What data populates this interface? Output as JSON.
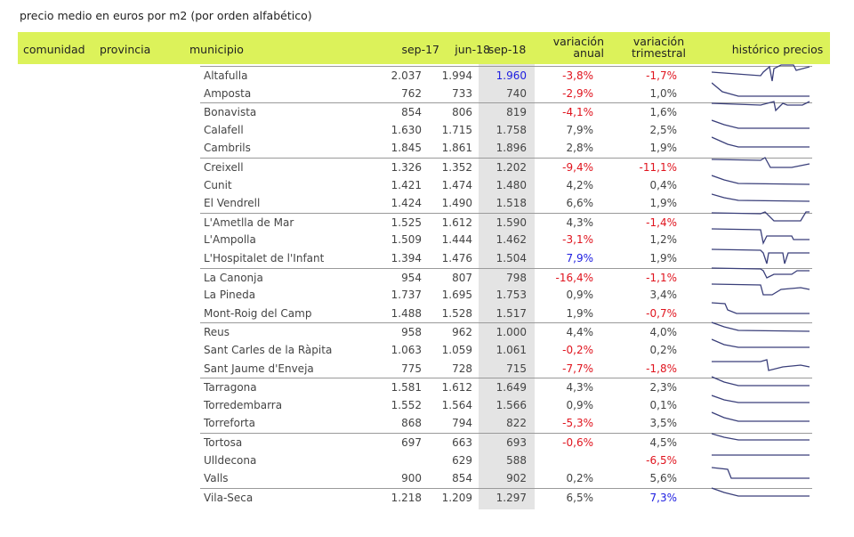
{
  "caption": "precio medio en euros por m2 (por orden alfabético)",
  "headers": {
    "comunidad": "comunidad",
    "provincia": "provincia",
    "municipio": "municipio",
    "sep17": "sep-17",
    "jun18": "jun-18",
    "sep18": "sep-18",
    "var_anual_1": "variación",
    "var_anual_2": "anual",
    "var_trim_1": "variación",
    "var_trim_2": "trimestral",
    "historico": "histórico precios"
  },
  "colors": {
    "header_bg": "#dcf25a",
    "negative": "#e0141e",
    "highlight": "#1d1de0",
    "spark": "#3a3f7a"
  },
  "rows": [
    {
      "name": "Altafulla",
      "sep17": "2.037",
      "jun18": "1.994",
      "sep18": "1.960",
      "va": "-3,8%",
      "vt": "-1,7%",
      "s18c": "blue",
      "vac": "neg",
      "vtc": "neg",
      "group": true
    },
    {
      "name": "Amposta",
      "sep17": "762",
      "jun18": "733",
      "sep18": "740",
      "va": "-2,9%",
      "vt": "1,0%",
      "vac": "neg"
    },
    {
      "name": "Bonavista",
      "sep17": "854",
      "jun18": "806",
      "sep18": "819",
      "va": "-4,1%",
      "vt": "1,6%",
      "vac": "neg",
      "group": true
    },
    {
      "name": "Calafell",
      "sep17": "1.630",
      "jun18": "1.715",
      "sep18": "1.758",
      "va": "7,9%",
      "vt": "2,5%"
    },
    {
      "name": "Cambrils",
      "sep17": "1.845",
      "jun18": "1.861",
      "sep18": "1.896",
      "va": "2,8%",
      "vt": "1,9%"
    },
    {
      "name": "Creixell",
      "sep17": "1.326",
      "jun18": "1.352",
      "sep18": "1.202",
      "va": "-9,4%",
      "vt": "-11,1%",
      "vac": "neg",
      "vtc": "neg",
      "group": true
    },
    {
      "name": "Cunit",
      "sep17": "1.421",
      "jun18": "1.474",
      "sep18": "1.480",
      "va": "4,2%",
      "vt": "0,4%"
    },
    {
      "name": "El Vendrell",
      "sep17": "1.424",
      "jun18": "1.490",
      "sep18": "1.518",
      "va": "6,6%",
      "vt": "1,9%"
    },
    {
      "name": "L'Ametlla de Mar",
      "sep17": "1.525",
      "jun18": "1.612",
      "sep18": "1.590",
      "va": "4,3%",
      "vt": "-1,4%",
      "vtc": "neg",
      "group": true
    },
    {
      "name": "L'Ampolla",
      "sep17": "1.509",
      "jun18": "1.444",
      "sep18": "1.462",
      "va": "-3,1%",
      "vt": "1,2%",
      "vac": "neg"
    },
    {
      "name": "L'Hospitalet de l'Infant",
      "sep17": "1.394",
      "jun18": "1.476",
      "sep18": "1.504",
      "va": "7,9%",
      "vt": "1,9%",
      "vac": "blue"
    },
    {
      "name": "La Canonja",
      "sep17": "954",
      "jun18": "807",
      "sep18": "798",
      "va": "-16,4%",
      "vt": "-1,1%",
      "vac": "neg",
      "vtc": "neg",
      "group": true
    },
    {
      "name": "La Pineda",
      "sep17": "1.737",
      "jun18": "1.695",
      "sep18": "1.753",
      "va": "0,9%",
      "vt": "3,4%"
    },
    {
      "name": "Mont-Roig del Camp",
      "sep17": "1.488",
      "jun18": "1.528",
      "sep18": "1.517",
      "va": "1,9%",
      "vt": "-0,7%",
      "vtc": "neg"
    },
    {
      "name": "Reus",
      "sep17": "958",
      "jun18": "962",
      "sep18": "1.000",
      "va": "4,4%",
      "vt": "4,0%",
      "group": true
    },
    {
      "name": "Sant Carles de la Ràpita",
      "sep17": "1.063",
      "jun18": "1.059",
      "sep18": "1.061",
      "va": "-0,2%",
      "vt": "0,2%",
      "vac": "neg"
    },
    {
      "name": "Sant Jaume d'Enveja",
      "sep17": "775",
      "jun18": "728",
      "sep18": "715",
      "va": "-7,7%",
      "vt": "-1,8%",
      "vac": "neg",
      "vtc": "neg"
    },
    {
      "name": "Tarragona",
      "sep17": "1.581",
      "jun18": "1.612",
      "sep18": "1.649",
      "va": "4,3%",
      "vt": "2,3%",
      "group": true
    },
    {
      "name": "Torredembarra",
      "sep17": "1.552",
      "jun18": "1.564",
      "sep18": "1.566",
      "va": "0,9%",
      "vt": "0,1%"
    },
    {
      "name": "Torreforta",
      "sep17": "868",
      "jun18": "794",
      "sep18": "822",
      "va": "-5,3%",
      "vt": "3,5%",
      "vac": "neg"
    },
    {
      "name": "Tortosa",
      "sep17": "697",
      "jun18": "663",
      "sep18": "693",
      "va": "-0,6%",
      "vt": "4,5%",
      "vac": "neg",
      "group": true
    },
    {
      "name": "Ulldecona",
      "sep17": "",
      "jun18": "629",
      "sep18": "588",
      "va": "",
      "vt": "-6,5%",
      "vtc": "neg"
    },
    {
      "name": "Valls",
      "sep17": "900",
      "jun18": "854",
      "sep18": "902",
      "va": "0,2%",
      "vt": "5,6%"
    },
    {
      "name": "Vila-Seca",
      "sep17": "1.218",
      "jun18": "1.209",
      "sep18": "1.297",
      "va": "6,5%",
      "vt": "7,3%",
      "vtc": "blue",
      "group": true
    }
  ]
}
